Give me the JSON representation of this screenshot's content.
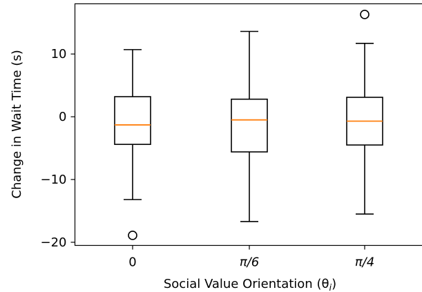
{
  "chart_data": {
    "type": "box",
    "title": "",
    "xlabel": "Social Value Orientation (θ",
    "xlabel_sub": "i",
    "xlabel_close": ")",
    "ylabel": "Change in Wait Time (s)",
    "ylim": [
      -20.5,
      18
    ],
    "yticks": [
      -20,
      -10,
      0,
      10
    ],
    "ytick_labels": [
      "−20",
      "−10",
      "0",
      "10"
    ],
    "categories": [
      "0",
      "π/6",
      "π/4"
    ],
    "boxes": [
      {
        "category": "0",
        "whisker_low": -13.2,
        "q1": -4.4,
        "median": -1.3,
        "q3": 3.2,
        "whisker_high": 10.7,
        "outliers": [
          -18.9
        ]
      },
      {
        "category": "π/6",
        "whisker_low": -16.7,
        "q1": -5.6,
        "median": -0.5,
        "q3": 2.8,
        "whisker_high": 13.6,
        "outliers": []
      },
      {
        "category": "π/4",
        "whisker_low": -15.5,
        "q1": -4.5,
        "median": -0.7,
        "q3": 3.1,
        "whisker_high": 11.7,
        "outliers": [
          16.3
        ]
      }
    ],
    "colors": {
      "box": "#000000",
      "median": "#ff7f0e",
      "outlier": "#000000"
    }
  }
}
